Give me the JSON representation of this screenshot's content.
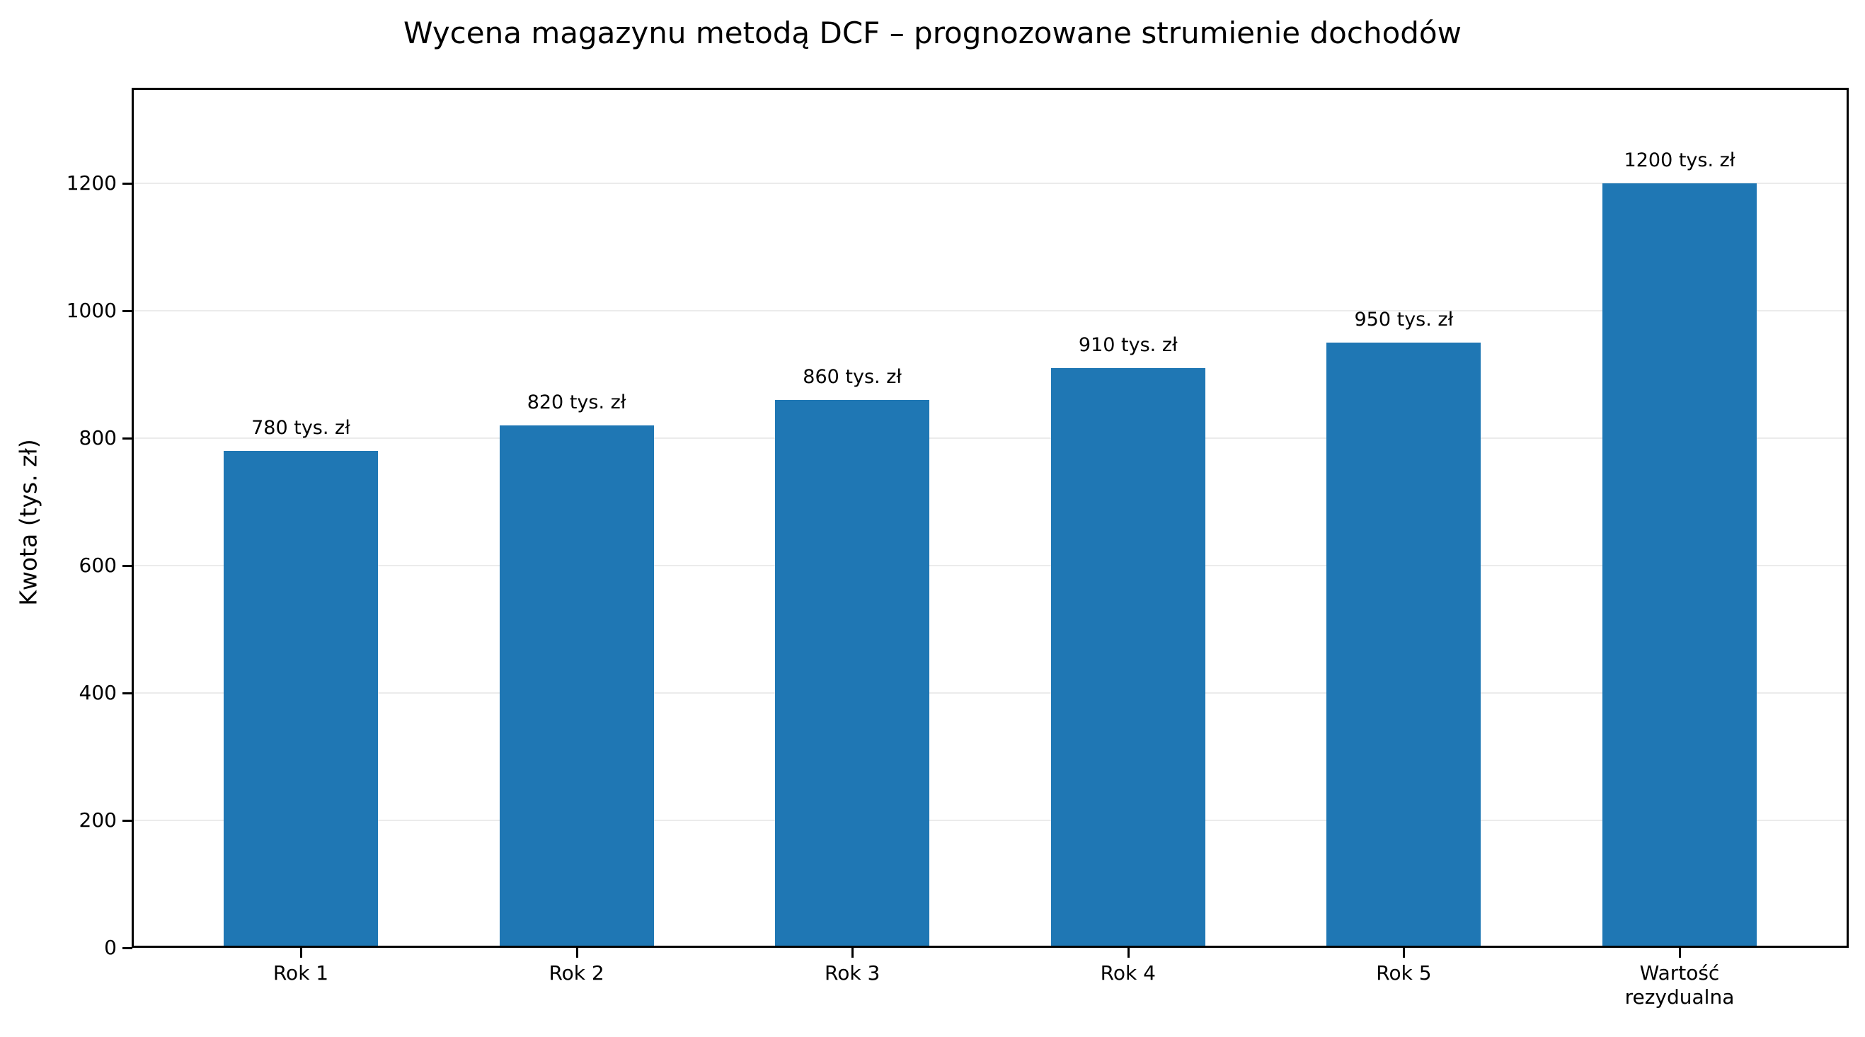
{
  "chart_data": {
    "type": "bar",
    "title": "Wycena magazynu metodą DCF – prognozowane strumienie dochodów",
    "xlabel": "",
    "ylabel": "Kwota (tys. zł)",
    "categories": [
      "Rok 1",
      "Rok 2",
      "Rok 3",
      "Rok 4",
      "Rok 5",
      "Wartość\nrezydualna"
    ],
    "values": [
      780,
      820,
      860,
      910,
      950,
      1200
    ],
    "data_labels": [
      "780 tys. zł",
      "820 tys. zł",
      "860 tys. zł",
      "910 tys. zł",
      "950 tys. zł",
      "1200 tys. zł"
    ],
    "yticks": [
      0,
      200,
      400,
      600,
      800,
      1000,
      1200
    ],
    "ylim": [
      0,
      1350
    ],
    "grid": "y",
    "legend": null,
    "bar_color": "#1f77b4"
  }
}
